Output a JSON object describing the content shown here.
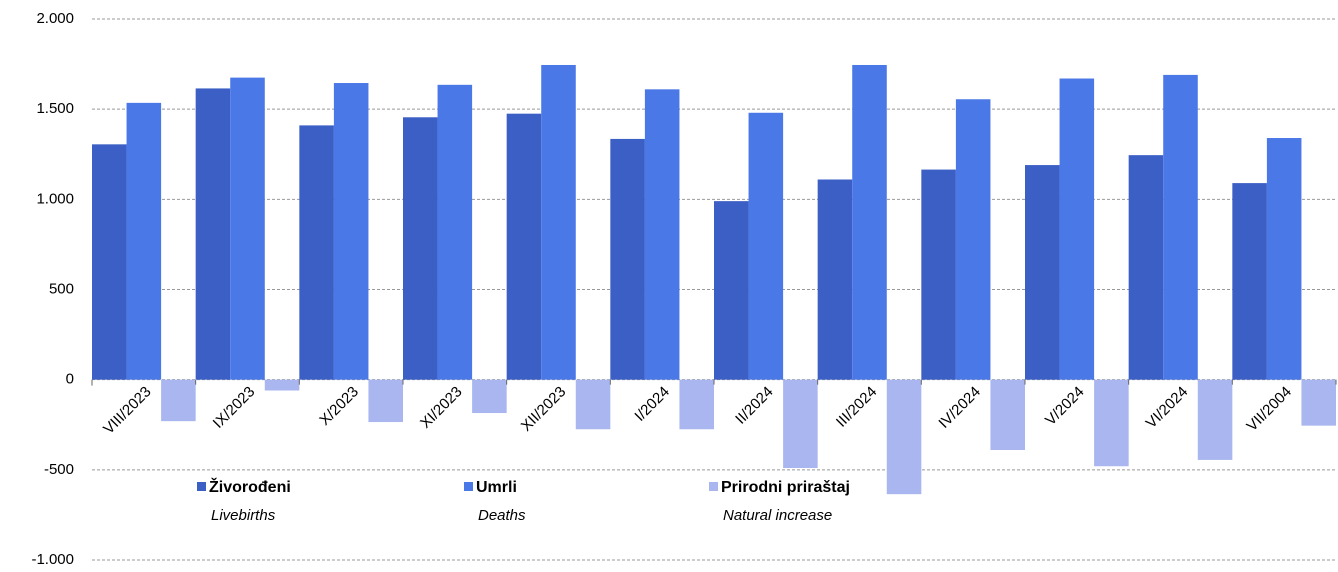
{
  "chart_data": {
    "type": "bar",
    "categories": [
      "VIII/2023",
      "IX/2023",
      "X/2023",
      "XI/2023",
      "XII/2023",
      "I/2024",
      "II/2024",
      "III/2024",
      "IV/2024",
      "V/2024",
      "VI/2024",
      "VII/2004"
    ],
    "series": [
      {
        "name": "Živorođeni",
        "name_en": "Livebirths",
        "color": "#3b5fc4",
        "values": [
          1305,
          1615,
          1410,
          1455,
          1475,
          1335,
          990,
          1110,
          1165,
          1190,
          1245,
          1090
        ]
      },
      {
        "name": "Umrli",
        "name_en": "Deaths",
        "color": "#4a78e6",
        "values": [
          1535,
          1675,
          1645,
          1635,
          1745,
          1610,
          1480,
          1745,
          1555,
          1670,
          1690,
          1340
        ]
      },
      {
        "name": "Prirodni priraštaj",
        "name_en": "Natural increase",
        "color": "#a9b6ef",
        "values": [
          -230,
          -60,
          -235,
          -185,
          -275,
          -275,
          -490,
          -635,
          -390,
          -480,
          -445,
          -255
        ]
      }
    ],
    "ylim": [
      -1000,
      2000
    ],
    "yticks": [
      {
        "value": -1000,
        "label": "-1.000"
      },
      -500,
      0,
      500,
      {
        "value": 1000,
        "label": "1.000"
      },
      {
        "value": 1500,
        "label": "1.500"
      },
      {
        "value": 2000,
        "label": "2.000"
      }
    ],
    "grid": true
  }
}
